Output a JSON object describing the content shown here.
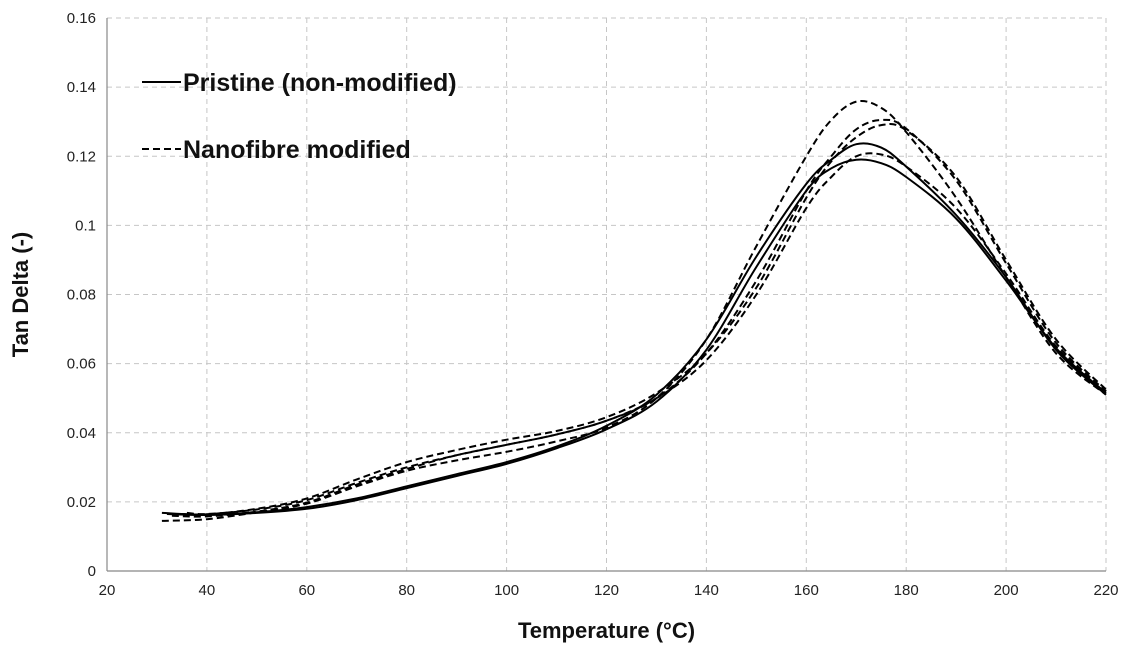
{
  "chart_data": {
    "type": "line",
    "xlabel": "Temperature (°C)",
    "ylabel": "Tan Delta (-)",
    "xlim": [
      20,
      220
    ],
    "ylim": [
      0,
      0.16
    ],
    "x_ticks": [
      20,
      40,
      60,
      80,
      100,
      120,
      140,
      160,
      180,
      200,
      220
    ],
    "y_ticks": [
      0,
      0.02,
      0.04,
      0.06,
      0.08,
      0.1,
      0.12,
      0.14,
      0.16
    ],
    "y_tick_labels": [
      "0",
      "0.02",
      "0.04",
      "0.06",
      "0.08",
      "0.1",
      "0.12",
      "0.14",
      "0.16"
    ],
    "grid": true,
    "legend": {
      "placement": "top-left",
      "entries": [
        {
          "label": "Pristine (non-modified)",
          "style": "solid"
        },
        {
          "label": "Nanofibre modified",
          "style": "dashed"
        }
      ]
    },
    "series": [
      {
        "style": "solid",
        "points": [
          [
            31,
            0.0168
          ],
          [
            40,
            0.0163
          ],
          [
            50,
            0.017
          ],
          [
            60,
            0.0185
          ],
          [
            70,
            0.021
          ],
          [
            80,
            0.0245
          ],
          [
            90,
            0.028
          ],
          [
            100,
            0.0315
          ],
          [
            110,
            0.036
          ],
          [
            120,
            0.042
          ],
          [
            130,
            0.051
          ],
          [
            140,
            0.067
          ],
          [
            150,
            0.091
          ],
          [
            160,
            0.112
          ],
          [
            165,
            0.119
          ],
          [
            170,
            0.1235
          ],
          [
            175,
            0.1225
          ],
          [
            180,
            0.117
          ],
          [
            190,
            0.103
          ],
          [
            200,
            0.085
          ],
          [
            210,
            0.064
          ],
          [
            220,
            0.051
          ]
        ]
      },
      {
        "style": "solid",
        "points": [
          [
            32,
            0.0165
          ],
          [
            40,
            0.0162
          ],
          [
            50,
            0.0168
          ],
          [
            60,
            0.018
          ],
          [
            70,
            0.0205
          ],
          [
            80,
            0.024
          ],
          [
            90,
            0.0275
          ],
          [
            100,
            0.031
          ],
          [
            110,
            0.0355
          ],
          [
            120,
            0.041
          ],
          [
            130,
            0.049
          ],
          [
            140,
            0.064
          ],
          [
            150,
            0.088
          ],
          [
            160,
            0.11
          ],
          [
            165,
            0.1165
          ],
          [
            170,
            0.119
          ],
          [
            175,
            0.118
          ],
          [
            180,
            0.114
          ],
          [
            190,
            0.102
          ],
          [
            200,
            0.084
          ],
          [
            210,
            0.0645
          ],
          [
            220,
            0.0515
          ]
        ]
      },
      {
        "style": "dashed",
        "points": [
          [
            31,
            0.0145
          ],
          [
            40,
            0.015
          ],
          [
            50,
            0.017
          ],
          [
            60,
            0.0195
          ],
          [
            70,
            0.0245
          ],
          [
            80,
            0.029
          ],
          [
            90,
            0.032
          ],
          [
            100,
            0.0345
          ],
          [
            110,
            0.0375
          ],
          [
            120,
            0.0415
          ],
          [
            130,
            0.05
          ],
          [
            140,
            0.067
          ],
          [
            150,
            0.094
          ],
          [
            160,
            0.12
          ],
          [
            165,
            0.1305
          ],
          [
            170,
            0.1358
          ],
          [
            175,
            0.134
          ],
          [
            180,
            0.127
          ],
          [
            190,
            0.108
          ],
          [
            200,
            0.085
          ],
          [
            210,
            0.063
          ],
          [
            220,
            0.051
          ]
        ]
      },
      {
        "style": "dashed",
        "points": [
          [
            33,
            0.016
          ],
          [
            40,
            0.0158
          ],
          [
            50,
            0.0172
          ],
          [
            60,
            0.0198
          ],
          [
            70,
            0.025
          ],
          [
            80,
            0.0295
          ],
          [
            90,
            0.0335
          ],
          [
            100,
            0.0365
          ],
          [
            110,
            0.0395
          ],
          [
            120,
            0.0435
          ],
          [
            130,
            0.05
          ],
          [
            140,
            0.063
          ],
          [
            150,
            0.084
          ],
          [
            160,
            0.11
          ],
          [
            165,
            0.12
          ],
          [
            170,
            0.1278
          ],
          [
            175,
            0.1305
          ],
          [
            180,
            0.128
          ],
          [
            190,
            0.113
          ],
          [
            200,
            0.089
          ],
          [
            210,
            0.066
          ],
          [
            220,
            0.052
          ]
        ]
      },
      {
        "style": "dashed",
        "points": [
          [
            35,
            0.0165
          ],
          [
            40,
            0.0164
          ],
          [
            50,
            0.018
          ],
          [
            60,
            0.021
          ],
          [
            70,
            0.0265
          ],
          [
            80,
            0.0315
          ],
          [
            90,
            0.035
          ],
          [
            100,
            0.038
          ],
          [
            110,
            0.0405
          ],
          [
            120,
            0.0445
          ],
          [
            130,
            0.0515
          ],
          [
            140,
            0.063
          ],
          [
            150,
            0.082
          ],
          [
            160,
            0.108
          ],
          [
            165,
            0.1185
          ],
          [
            170,
            0.1255
          ],
          [
            175,
            0.129
          ],
          [
            180,
            0.1275
          ],
          [
            190,
            0.114
          ],
          [
            200,
            0.09
          ],
          [
            210,
            0.067
          ],
          [
            220,
            0.0525
          ]
        ]
      },
      {
        "style": "dashed",
        "points": [
          [
            36,
            0.0168
          ],
          [
            40,
            0.0165
          ],
          [
            50,
            0.0178
          ],
          [
            60,
            0.0205
          ],
          [
            70,
            0.0255
          ],
          [
            80,
            0.03
          ],
          [
            90,
            0.0335
          ],
          [
            100,
            0.0365
          ],
          [
            110,
            0.0395
          ],
          [
            120,
            0.0435
          ],
          [
            130,
            0.05
          ],
          [
            140,
            0.061
          ],
          [
            150,
            0.08
          ],
          [
            160,
            0.105
          ],
          [
            165,
            0.114
          ],
          [
            170,
            0.12
          ],
          [
            175,
            0.1205
          ],
          [
            180,
            0.117
          ],
          [
            190,
            0.105
          ],
          [
            200,
            0.086
          ],
          [
            210,
            0.065
          ],
          [
            220,
            0.052
          ]
        ]
      }
    ]
  }
}
